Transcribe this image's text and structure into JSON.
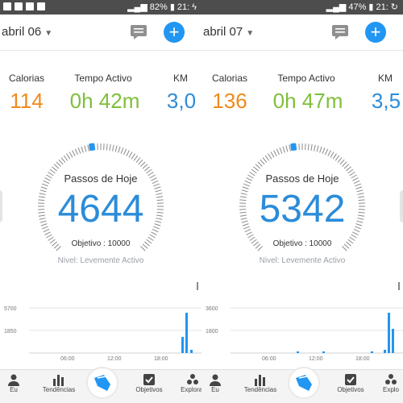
{
  "status_left": {
    "battery": "82%",
    "time": "21:"
  },
  "status_right": {
    "battery": "47%",
    "time": "21:"
  },
  "screens": [
    {
      "date": "abril 06",
      "stats": [
        {
          "label": "Calorias",
          "value": "114",
          "color": "#ef8a1c"
        },
        {
          "label": "Tempo Activo",
          "value": "0h 42m",
          "color": "#7fbf3a"
        },
        {
          "label": "KM",
          "value": "3,0",
          "color": "#2b8cd9"
        }
      ],
      "steps_title": "Passos de Hoje",
      "steps_value": "4644",
      "goal": "Objetivo : 10000",
      "level": "Nivel: Levemente Activo",
      "chart": {
        "y_top": "5700",
        "y_mid": "1850",
        "x_labels": [
          "06:00",
          "12:00",
          "18:00"
        ]
      }
    },
    {
      "date": "abril 07",
      "stats": [
        {
          "label": "Calorias",
          "value": "136",
          "color": "#ef8a1c"
        },
        {
          "label": "Tempo Activo",
          "value": "0h 47m",
          "color": "#7fbf3a"
        },
        {
          "label": "KM",
          "value": "3,5",
          "color": "#2b8cd9"
        }
      ],
      "steps_title": "Passos de Hoje",
      "steps_value": "5342",
      "goal": "Objetivo : 10000",
      "level": "Nivel: Levemente Activo",
      "chart": {
        "y_top": "3600",
        "y_mid": "1800",
        "x_labels": [
          "06:00",
          "12:00",
          "18:00"
        ]
      }
    }
  ],
  "nav": [
    "Eu",
    "Tendências",
    "",
    "Objetivos",
    "Explorar"
  ],
  "nav_right": [
    "Eu",
    "Tendências",
    "",
    "Objetivos",
    "Explo"
  ],
  "colors": {
    "accent": "#2196f3",
    "calorias": "#ef8a1c",
    "ativo": "#7fbf3a",
    "km": "#2b8cd9"
  }
}
